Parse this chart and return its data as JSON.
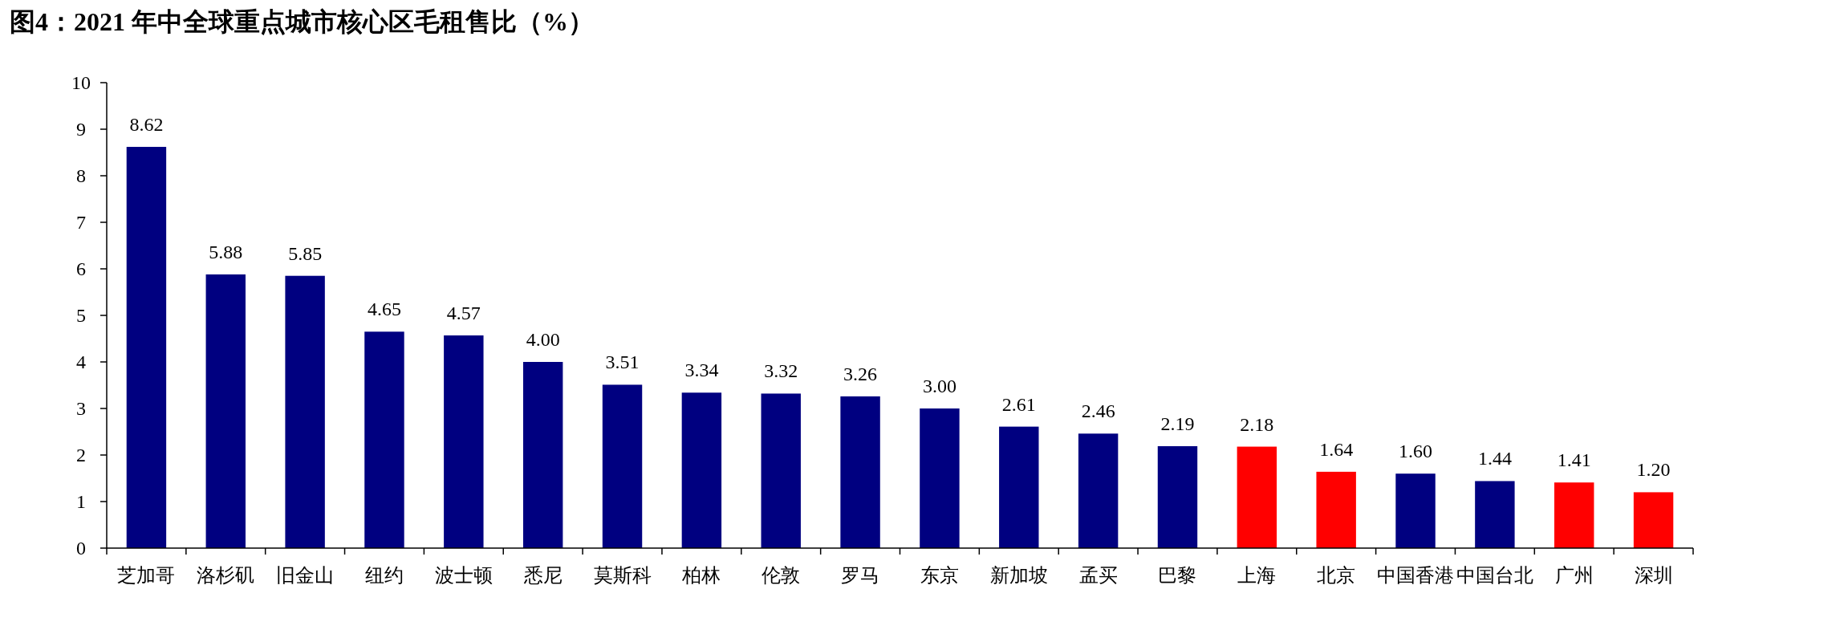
{
  "chart_data": {
    "type": "bar",
    "title": "图4：2021 年中全球重点城市核心区毛租售比（%）",
    "categories": [
      "芝加哥",
      "洛杉矶",
      "旧金山",
      "纽约",
      "波士顿",
      "悉尼",
      "莫斯科",
      "柏林",
      "伦敦",
      "罗马",
      "东京",
      "新加坡",
      "孟买",
      "巴黎",
      "上海",
      "北京",
      "中国香港",
      "中国台北",
      "广州",
      "深圳"
    ],
    "values": [
      8.62,
      5.88,
      5.85,
      4.65,
      4.57,
      4.0,
      3.51,
      3.34,
      3.32,
      3.26,
      3.0,
      2.61,
      2.46,
      2.19,
      2.18,
      1.64,
      1.6,
      1.44,
      1.41,
      1.2
    ],
    "value_labels": [
      "8.62",
      "5.88",
      "5.85",
      "4.65",
      "4.57",
      "4.00",
      "3.51",
      "3.34",
      "3.32",
      "3.26",
      "3.00",
      "2.61",
      "2.46",
      "2.19",
      "2.18",
      "1.64",
      "1.60",
      "1.44",
      "1.41",
      "1.20"
    ],
    "colors": [
      "#000080",
      "#000080",
      "#000080",
      "#000080",
      "#000080",
      "#000080",
      "#000080",
      "#000080",
      "#000080",
      "#000080",
      "#000080",
      "#000080",
      "#000080",
      "#000080",
      "#ff0000",
      "#ff0000",
      "#000080",
      "#000080",
      "#ff0000",
      "#ff0000"
    ],
    "ylim": [
      0,
      10
    ],
    "yticks": [
      0,
      1,
      2,
      3,
      4,
      5,
      6,
      7,
      8,
      9,
      10
    ]
  }
}
